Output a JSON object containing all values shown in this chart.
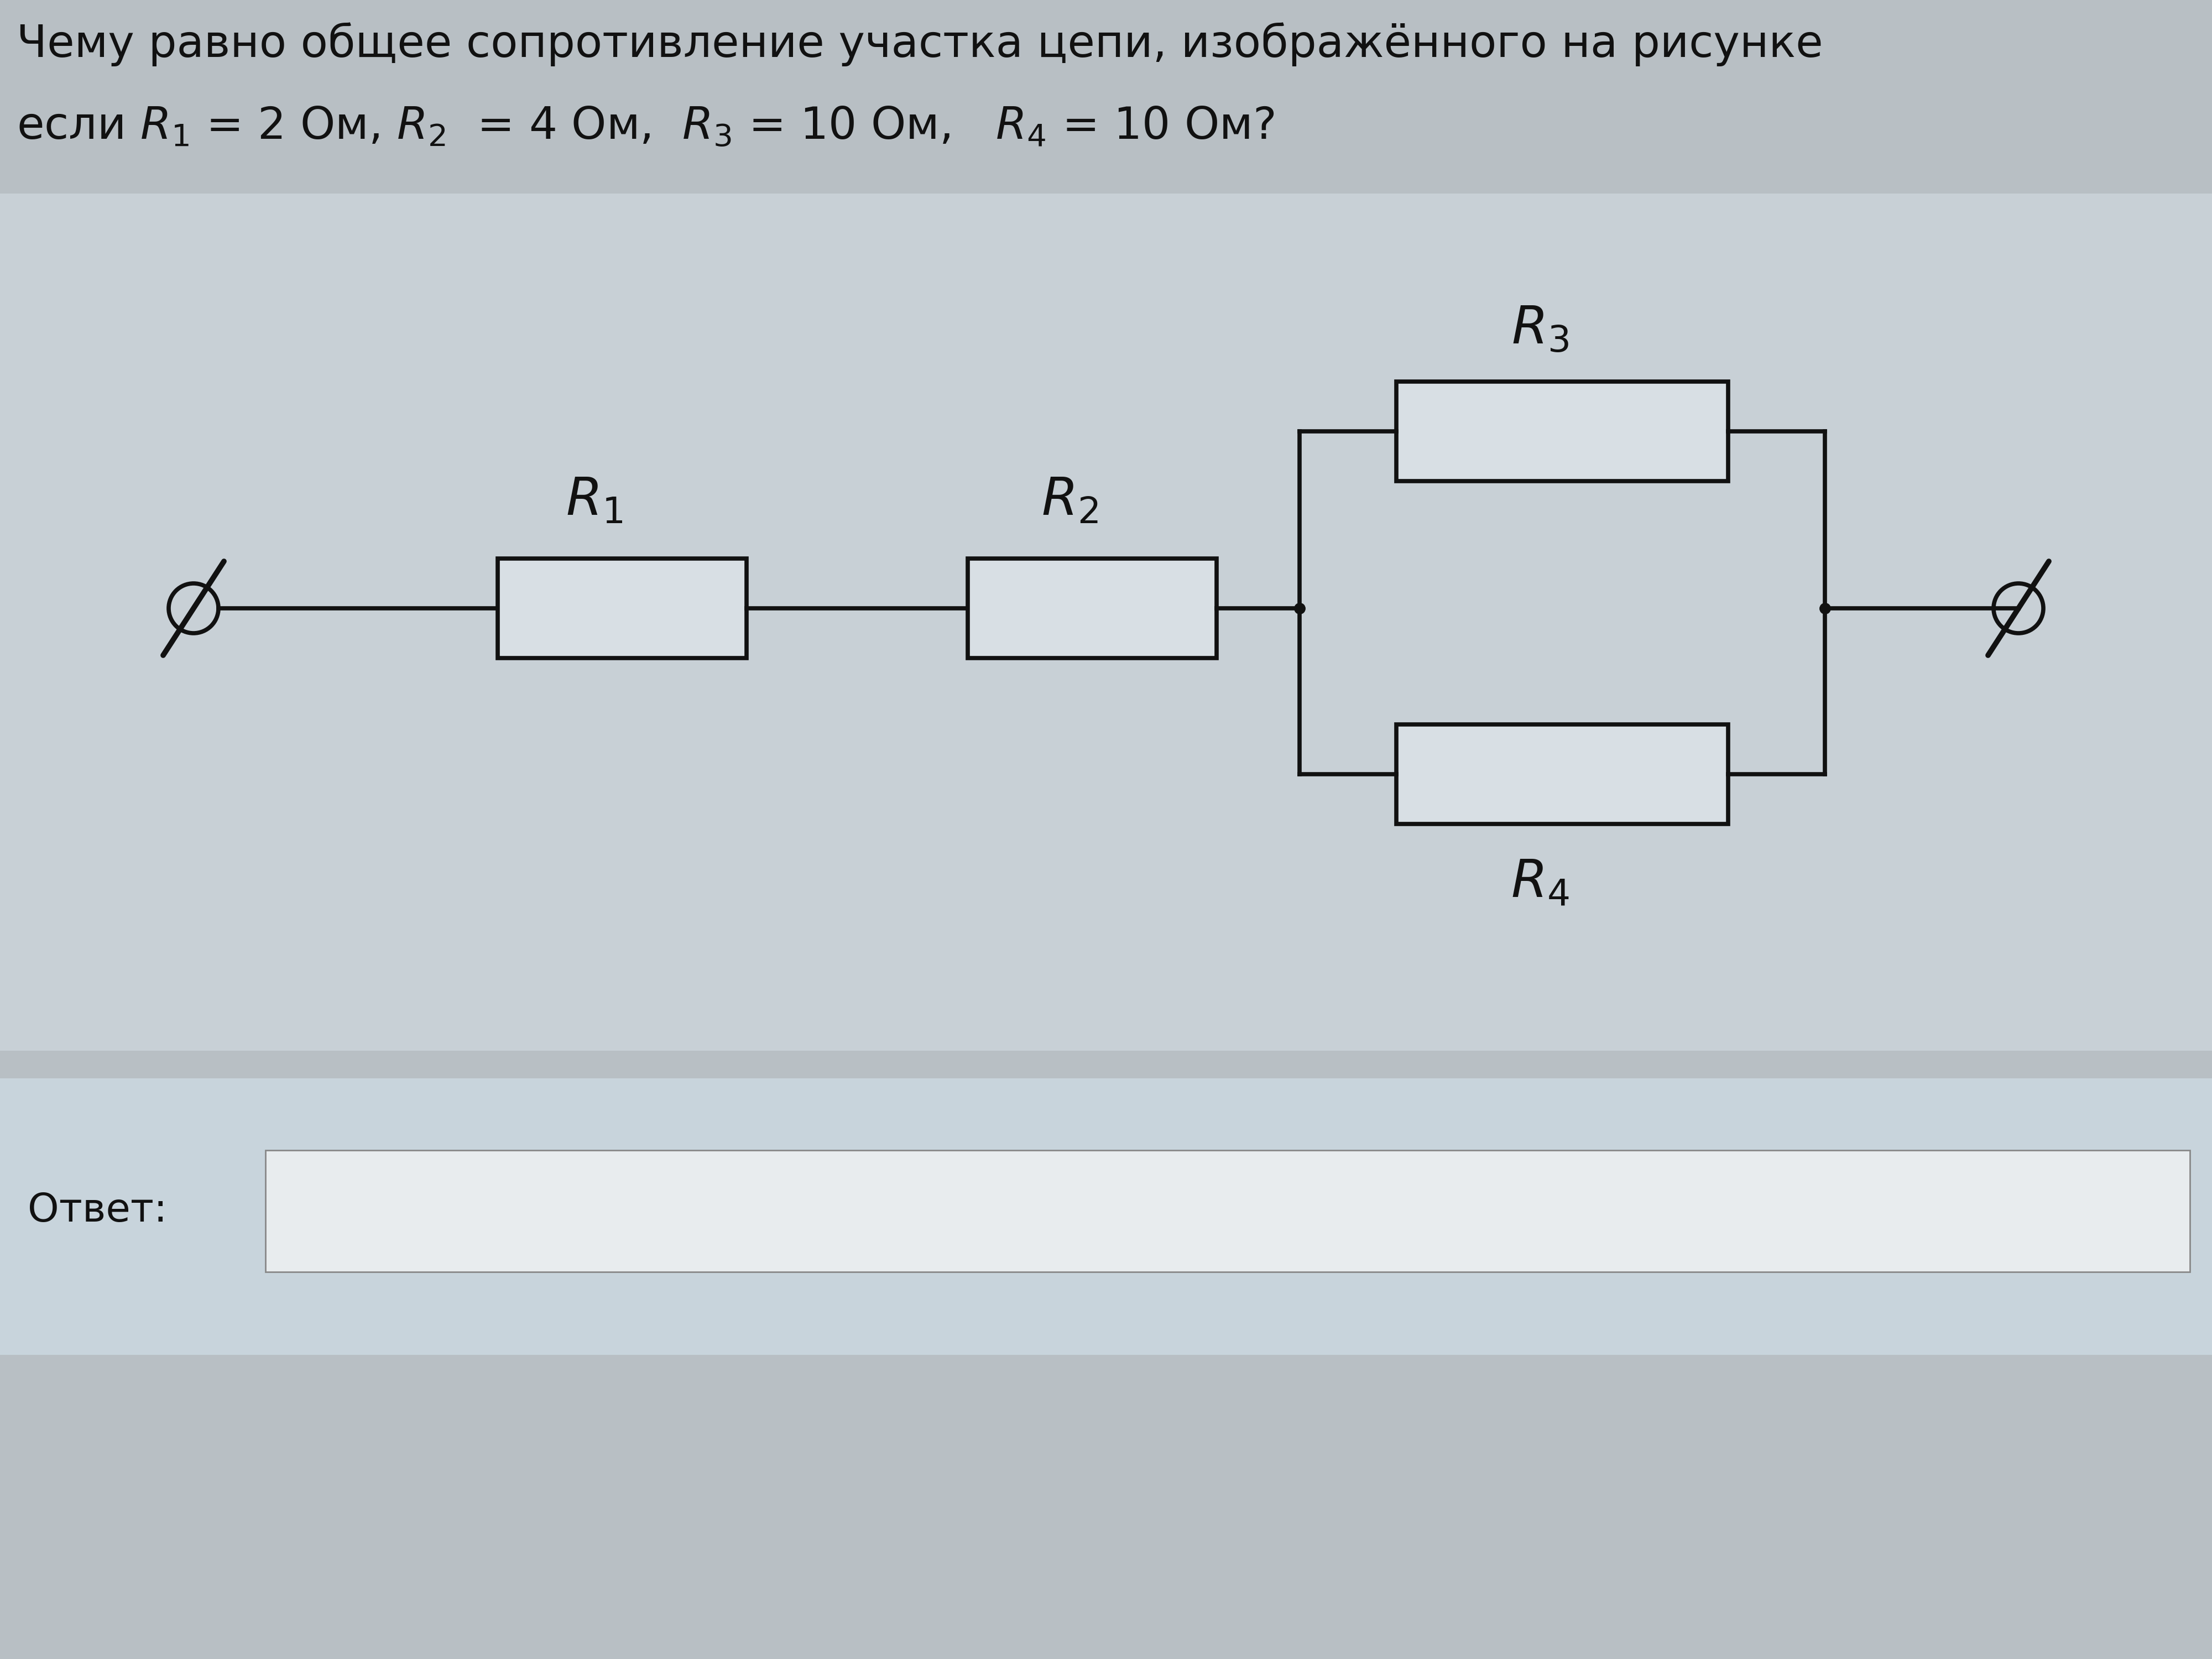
{
  "bg_color": "#b8bfc4",
  "circuit_area_color": "#c8d0d6",
  "answer_area_color": "#c8d4dc",
  "answer_box_color": "#e8ecee",
  "resistor_fill": "#d8dfe4",
  "text_color": "#111111",
  "circuit_color": "#111111",
  "title_line1": "Чему равно общее сопротивление участка цепи, изображённого на рисунке",
  "answer_label": "Ответ:",
  "font_size_title": 58,
  "font_size_labels": 68,
  "font_size_answer": 52,
  "lw": 5.5
}
